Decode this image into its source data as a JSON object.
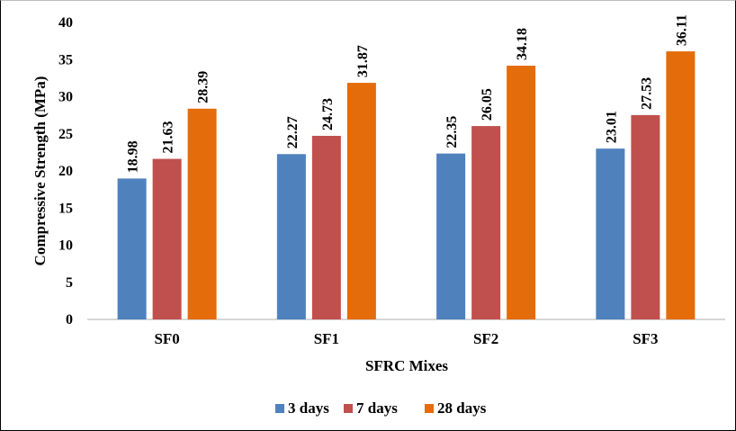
{
  "chart_data": {
    "type": "bar",
    "categories": [
      "SF0",
      "SF1",
      "SF2",
      "SF3"
    ],
    "series": [
      {
        "name": "3 days",
        "color": "#4f81bd",
        "values": [
          18.98,
          22.27,
          22.35,
          23.01
        ]
      },
      {
        "name": "7 days",
        "color": "#c0504d",
        "values": [
          21.63,
          24.73,
          26.05,
          27.53
        ]
      },
      {
        "name": "28 days",
        "color": "#e46c0a",
        "values": [
          28.39,
          31.87,
          34.18,
          36.11
        ]
      }
    ],
    "xlabel": "SFRC Mixes",
    "ylabel": "Compressive Strength (MPa)",
    "ylim": [
      0,
      40
    ],
    "yticks": [
      "0",
      "5",
      "10",
      "15",
      "20",
      "25",
      "30",
      "35",
      "40"
    ],
    "grid": false,
    "legend_position": "bottom",
    "data_labels": true
  }
}
